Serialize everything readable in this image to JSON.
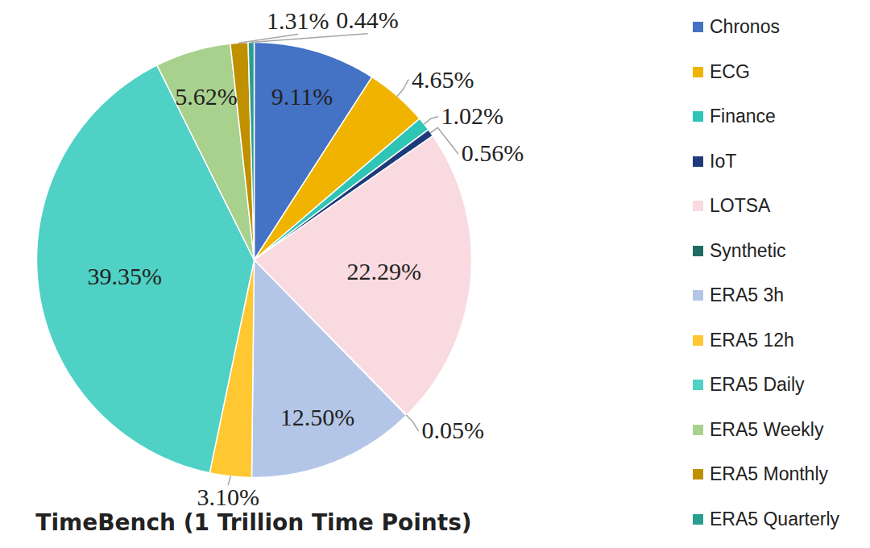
{
  "chart_data": {
    "type": "pie",
    "title": "TimeBench (1 Trillion Time Points)",
    "categories": [
      "Chronos",
      "ECG",
      "Finance",
      "IoT",
      "LOTSA",
      "Synthetic",
      "ERA5 3h",
      "ERA5 12h",
      "ERA5 Daily",
      "ERA5 Weekly",
      "ERA5 Monthly",
      "ERA5 Quarterly"
    ],
    "values": [
      9.11,
      4.65,
      1.02,
      0.56,
      22.29,
      0.05,
      12.5,
      3.1,
      39.35,
      5.62,
      1.31,
      0.44
    ],
    "value_labels": [
      "9.11%",
      "4.65%",
      "1.02%",
      "0.56%",
      "22.29%",
      "0.05%",
      "12.50%",
      "3.10%",
      "39.35%",
      "5.62%",
      "1.31%",
      "0.44%"
    ],
    "colors": [
      "#4472c4",
      "#f0b400",
      "#2ec4b6",
      "#1f3a7a",
      "#f9dae0",
      "#1e6b64",
      "#b4c6e7",
      "#ffc833",
      "#4fd1c5",
      "#a9d18e",
      "#bf9000",
      "#2a9d8f"
    ],
    "legend": "right",
    "data_labels": true
  }
}
